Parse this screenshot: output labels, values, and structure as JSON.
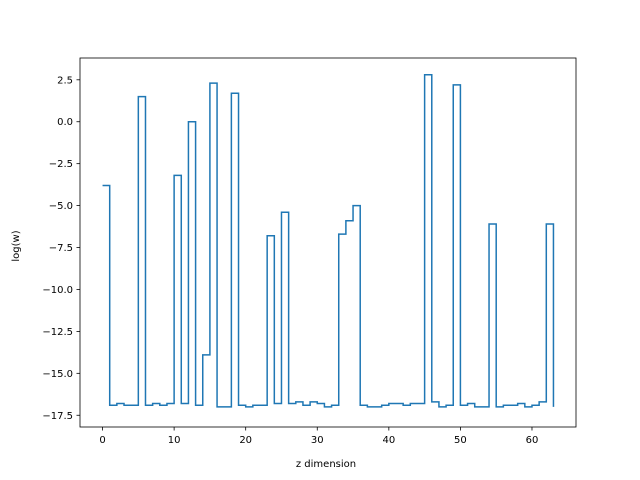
{
  "chart_data": {
    "type": "line",
    "step": "post",
    "xlabel": "z dimension",
    "ylabel": "log(w)",
    "xlim": [
      -3.15,
      66.15
    ],
    "ylim": [
      -18.2,
      3.8
    ],
    "xticks": [
      0,
      10,
      20,
      30,
      40,
      50,
      60
    ],
    "yticks": [
      2.5,
      0.0,
      -2.5,
      -5.0,
      -7.5,
      -10.0,
      -12.5,
      -15.0,
      -17.5
    ],
    "ytick_labels": [
      "2.5",
      "0.0",
      "−2.5",
      "−5.0",
      "−7.5",
      "−10.0",
      "−12.5",
      "−15.0",
      "−17.5"
    ],
    "grid": false,
    "line_color": "#1f77b4",
    "series": [
      {
        "x": [
          0,
          1,
          2,
          3,
          4,
          5,
          6,
          7,
          8,
          9,
          10,
          11,
          12,
          13,
          14,
          15,
          16,
          17,
          18,
          19,
          20,
          21,
          22,
          23,
          24,
          25,
          26,
          27,
          28,
          29,
          30,
          31,
          32,
          33,
          34,
          35,
          36,
          37,
          38,
          39,
          40,
          41,
          42,
          43,
          44,
          45,
          46,
          47,
          48,
          49,
          50,
          51,
          52,
          53,
          54,
          55,
          56,
          57,
          58,
          59,
          60,
          61,
          62,
          63
        ],
        "values": [
          -3.8,
          -16.9,
          -16.8,
          -16.9,
          -16.9,
          1.5,
          -16.9,
          -16.8,
          -16.9,
          -16.8,
          -3.2,
          -16.8,
          0.0,
          -16.9,
          -13.9,
          2.3,
          -17.0,
          -17.0,
          1.7,
          -16.9,
          -17.0,
          -16.9,
          -16.9,
          -6.8,
          -16.8,
          -5.4,
          -16.8,
          -16.7,
          -16.9,
          -16.7,
          -16.8,
          -17.0,
          -16.9,
          -6.7,
          -5.9,
          -5.0,
          -16.9,
          -17.0,
          -17.0,
          -16.9,
          -16.8,
          -16.8,
          -16.9,
          -16.8,
          -16.8,
          2.8,
          -16.7,
          -17.0,
          -16.9,
          2.2,
          -16.9,
          -16.8,
          -17.0,
          -17.0,
          -6.1,
          -17.0,
          -16.9,
          -16.9,
          -16.8,
          -17.0,
          -16.9,
          -16.7,
          -6.1,
          -17.0
        ]
      }
    ]
  }
}
